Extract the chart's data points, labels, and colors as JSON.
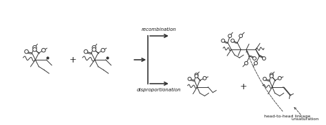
{
  "bg_color": "#ffffff",
  "line_color": "#333333",
  "text_color": "#111111",
  "fig_width": 4.74,
  "fig_height": 1.82,
  "dpi": 100,
  "labels": {
    "recombination": "recombination",
    "disproportionation": "disproportionation",
    "head_to_head": "head-to-head linkage",
    "unsaturation": "unsaturation",
    "plus1": "+",
    "plus2": "+"
  }
}
